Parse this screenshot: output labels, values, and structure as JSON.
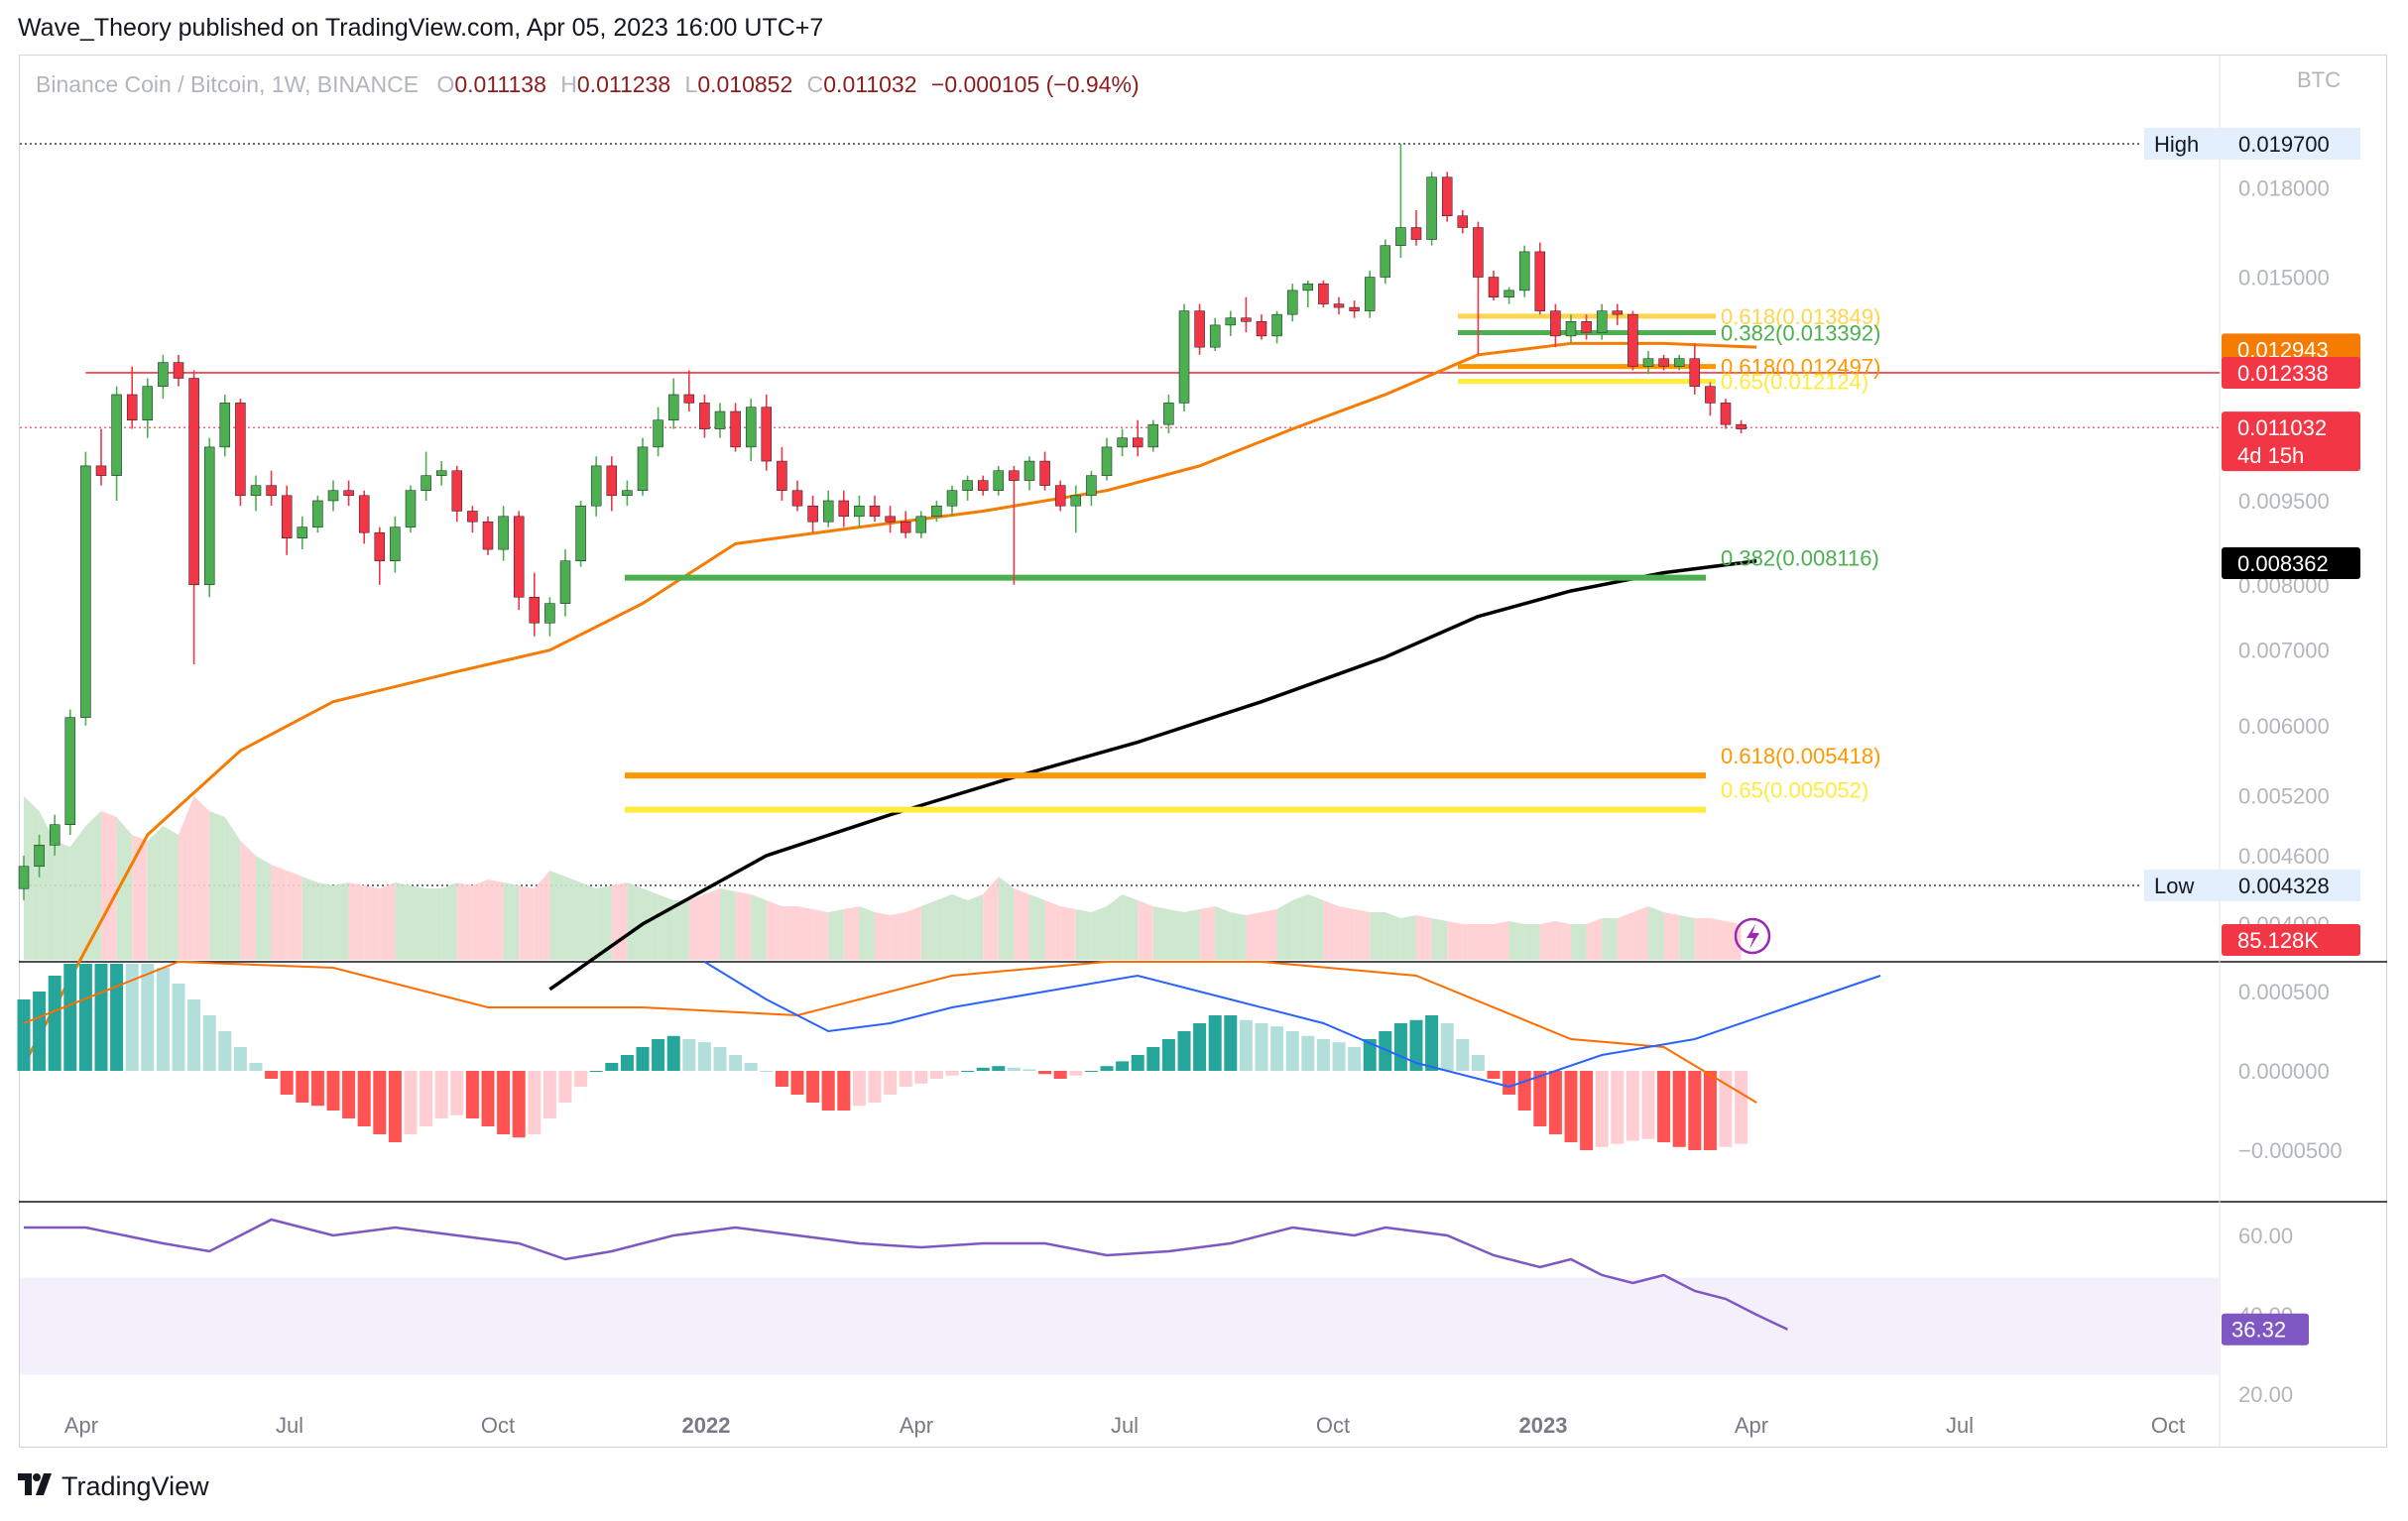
{
  "header": {
    "publisher_line": "Wave_Theory published on TradingView.com, Apr 05, 2023 16:00 UTC+7"
  },
  "symbol": {
    "name": "Binance Coin / Bitcoin, 1W, BINANCE",
    "o_label": "O",
    "o_value": "0.011138",
    "h_label": "H",
    "h_value": "0.011238",
    "l_label": "L",
    "l_value": "0.010852",
    "c_label": "C",
    "c_value": "0.011032",
    "change": "−0.000105 (−0.94%)"
  },
  "unit_label": "BTC",
  "footer": {
    "brand": "TradingView"
  },
  "colors": {
    "up": "#26a69a",
    "down": "#ef5350",
    "upBody": "#4caf50",
    "downBody": "#f23645",
    "ema50": "#f57c00",
    "ema200": "#000000",
    "fibGreen": "#4caf50",
    "fibOrange": "#ff9800",
    "fibYellow": "#ffeb3b",
    "macd": "#2962ff",
    "signal": "#ff6d00",
    "rsi": "#7e57c2",
    "resistance": "#f23645"
  },
  "chart_data": {
    "type": "candlestick",
    "title": "Binance Coin / Bitcoin, 1W, BINANCE",
    "price_axis": {
      "scale": "log",
      "ticks": [
        "0.018000",
        "0.015000",
        "0.012943",
        "0.012338",
        "0.011032",
        "0.009500",
        "0.008362",
        "0.008000",
        "0.007000",
        "0.006000",
        "0.005200",
        "0.004600",
        "0.004000"
      ],
      "visible_tick_labels": [
        "0.018000",
        "0.015000",
        "0.009500",
        "0.008000",
        "0.007000",
        "0.006000",
        "0.005200",
        "0.004600",
        "0.004000"
      ]
    },
    "x_axis": {
      "labels": [
        "Apr",
        "Jul",
        "Oct",
        "2022",
        "Apr",
        "Jul",
        "Oct",
        "2023",
        "Apr",
        "Jul",
        "Oct"
      ],
      "bold": [
        false,
        false,
        false,
        true,
        false,
        false,
        false,
        true,
        false,
        false,
        false
      ]
    },
    "high_marker": {
      "label": "High",
      "value": "0.019700"
    },
    "low_marker": {
      "label": "Low",
      "value": "0.004328"
    },
    "price_badges": [
      {
        "value": "0.012943",
        "color": "#f57c00",
        "text_color": "#ffffff"
      },
      {
        "value": "0.012338",
        "color": "#f23645",
        "text_color": "#ffffff"
      },
      {
        "value": "0.011032",
        "sub": "4d 15h",
        "color": "#f23645",
        "text_color": "#ffffff"
      },
      {
        "value": "0.008362",
        "color": "#000000",
        "text_color": "#ffffff"
      },
      {
        "value": "85.128K",
        "color": "#f23645",
        "text_color": "#ffffff"
      }
    ],
    "fib_levels": [
      {
        "label": "0.618(0.013849)",
        "value": 0.013849,
        "color": "#ffd54f",
        "range": "short"
      },
      {
        "label": "0.382(0.013392)",
        "value": 0.013392,
        "color": "#4caf50",
        "range": "short"
      },
      {
        "label": "0.618(0.012497)",
        "value": 0.012497,
        "color": "#ff9800",
        "range": "short"
      },
      {
        "label": "0.65(0.012124)",
        "value": 0.012124,
        "color": "#ffeb3b",
        "range": "short"
      },
      {
        "label": "0.382(0.008116)",
        "value": 0.008116,
        "color": "#4caf50",
        "range": "long"
      },
      {
        "label": "0.618(0.005418)",
        "value": 0.005418,
        "color": "#ff9800",
        "range": "long"
      },
      {
        "label": "0.65(0.005052)",
        "value": 0.005052,
        "color": "#ffeb3b",
        "range": "long"
      }
    ],
    "resistance_level": 0.012338,
    "candles": [
      [
        0.0043,
        0.0046,
        0.0042,
        0.0045
      ],
      [
        0.0045,
        0.0048,
        0.0044,
        0.0047
      ],
      [
        0.0047,
        0.005,
        0.0046,
        0.0049
      ],
      [
        0.0049,
        0.0062,
        0.0048,
        0.0061
      ],
      [
        0.0061,
        0.0105,
        0.006,
        0.0102
      ],
      [
        0.0102,
        0.011,
        0.0098,
        0.01
      ],
      [
        0.01,
        0.012,
        0.0095,
        0.0118
      ],
      [
        0.0118,
        0.0125,
        0.011,
        0.0112
      ],
      [
        0.0112,
        0.0122,
        0.0108,
        0.012
      ],
      [
        0.012,
        0.0128,
        0.0117,
        0.0126
      ],
      [
        0.0126,
        0.0128,
        0.012,
        0.0122
      ],
      [
        0.0122,
        0.0124,
        0.0068,
        0.008
      ],
      [
        0.008,
        0.0108,
        0.0078,
        0.0106
      ],
      [
        0.0106,
        0.0118,
        0.0104,
        0.0116
      ],
      [
        0.0116,
        0.0117,
        0.0094,
        0.0096
      ],
      [
        0.0096,
        0.01,
        0.0093,
        0.0098
      ],
      [
        0.0098,
        0.0101,
        0.0094,
        0.0096
      ],
      [
        0.0096,
        0.0098,
        0.0085,
        0.0088
      ],
      [
        0.0088,
        0.0092,
        0.0086,
        0.009
      ],
      [
        0.009,
        0.0096,
        0.0089,
        0.0095
      ],
      [
        0.0095,
        0.0099,
        0.0093,
        0.0097
      ],
      [
        0.0097,
        0.0099,
        0.0094,
        0.0096
      ],
      [
        0.0096,
        0.0097,
        0.0087,
        0.0089
      ],
      [
        0.0089,
        0.009,
        0.008,
        0.0084
      ],
      [
        0.0084,
        0.0092,
        0.0082,
        0.009
      ],
      [
        0.009,
        0.0098,
        0.0089,
        0.0097
      ],
      [
        0.0097,
        0.0105,
        0.0095,
        0.01
      ],
      [
        0.01,
        0.0103,
        0.0098,
        0.0101
      ],
      [
        0.0101,
        0.0102,
        0.0091,
        0.0093
      ],
      [
        0.0093,
        0.0094,
        0.0089,
        0.0091
      ],
      [
        0.0091,
        0.0092,
        0.0085,
        0.0086
      ],
      [
        0.0086,
        0.0094,
        0.0084,
        0.0092
      ],
      [
        0.0092,
        0.0093,
        0.0076,
        0.0078
      ],
      [
        0.0078,
        0.0082,
        0.0072,
        0.0074
      ],
      [
        0.0074,
        0.0078,
        0.0072,
        0.0077
      ],
      [
        0.0077,
        0.0086,
        0.0075,
        0.0084
      ],
      [
        0.0084,
        0.0095,
        0.0083,
        0.0094
      ],
      [
        0.0094,
        0.0104,
        0.0092,
        0.0102
      ],
      [
        0.0102,
        0.0104,
        0.0093,
        0.0096
      ],
      [
        0.0096,
        0.0099,
        0.0094,
        0.0097
      ],
      [
        0.0097,
        0.0108,
        0.0096,
        0.0106
      ],
      [
        0.0106,
        0.0115,
        0.0104,
        0.0112
      ],
      [
        0.0112,
        0.0122,
        0.011,
        0.0118
      ],
      [
        0.0118,
        0.0124,
        0.0114,
        0.0116
      ],
      [
        0.0116,
        0.0118,
        0.0108,
        0.011
      ],
      [
        0.011,
        0.0116,
        0.0108,
        0.0114
      ],
      [
        0.0114,
        0.0116,
        0.0105,
        0.0106
      ],
      [
        0.0106,
        0.0117,
        0.0103,
        0.0115
      ],
      [
        0.0115,
        0.0118,
        0.0101,
        0.0103
      ],
      [
        0.0103,
        0.0106,
        0.0095,
        0.0097
      ],
      [
        0.0097,
        0.0099,
        0.0093,
        0.0094
      ],
      [
        0.0094,
        0.0096,
        0.0089,
        0.0091
      ],
      [
        0.0091,
        0.0097,
        0.009,
        0.0095
      ],
      [
        0.0095,
        0.0097,
        0.009,
        0.0092
      ],
      [
        0.0092,
        0.0096,
        0.009,
        0.0094
      ],
      [
        0.0094,
        0.0096,
        0.0091,
        0.0092
      ],
      [
        0.0092,
        0.0094,
        0.0089,
        0.0091
      ],
      [
        0.0091,
        0.0093,
        0.0088,
        0.0089
      ],
      [
        0.0089,
        0.0093,
        0.0088,
        0.0092
      ],
      [
        0.0092,
        0.0095,
        0.0091,
        0.0094
      ],
      [
        0.0094,
        0.0098,
        0.0092,
        0.0097
      ],
      [
        0.0097,
        0.01,
        0.0095,
        0.0099
      ],
      [
        0.0099,
        0.01,
        0.0096,
        0.0097
      ],
      [
        0.0097,
        0.0102,
        0.0096,
        0.0101
      ],
      [
        0.0101,
        0.0102,
        0.008,
        0.0099
      ],
      [
        0.0099,
        0.0104,
        0.0097,
        0.0103
      ],
      [
        0.0103,
        0.0105,
        0.0097,
        0.0098
      ],
      [
        0.0098,
        0.0099,
        0.0093,
        0.0094
      ],
      [
        0.0094,
        0.0098,
        0.0089,
        0.0096
      ],
      [
        0.0096,
        0.0101,
        0.0094,
        0.01
      ],
      [
        0.01,
        0.0108,
        0.0099,
        0.0106
      ],
      [
        0.0106,
        0.011,
        0.0104,
        0.0108
      ],
      [
        0.0108,
        0.0112,
        0.0104,
        0.0106
      ],
      [
        0.0106,
        0.0112,
        0.0105,
        0.0111
      ],
      [
        0.0111,
        0.0118,
        0.0109,
        0.0116
      ],
      [
        0.0116,
        0.0142,
        0.0114,
        0.014
      ],
      [
        0.014,
        0.0142,
        0.0128,
        0.013
      ],
      [
        0.013,
        0.0138,
        0.0129,
        0.0136
      ],
      [
        0.0136,
        0.014,
        0.0133,
        0.0138
      ],
      [
        0.0138,
        0.0144,
        0.0134,
        0.0137
      ],
      [
        0.0137,
        0.0139,
        0.0132,
        0.0133
      ],
      [
        0.0133,
        0.014,
        0.0131,
        0.0139
      ],
      [
        0.0139,
        0.0148,
        0.0137,
        0.0146
      ],
      [
        0.0146,
        0.0149,
        0.0141,
        0.0148
      ],
      [
        0.0148,
        0.0149,
        0.0141,
        0.0142
      ],
      [
        0.0142,
        0.0144,
        0.0139,
        0.0141
      ],
      [
        0.0141,
        0.0143,
        0.0138,
        0.014
      ],
      [
        0.014,
        0.0152,
        0.0138,
        0.015
      ],
      [
        0.015,
        0.0162,
        0.0148,
        0.016
      ],
      [
        0.016,
        0.0197,
        0.0156,
        0.0166
      ],
      [
        0.0166,
        0.0172,
        0.016,
        0.0162
      ],
      [
        0.0162,
        0.0186,
        0.016,
        0.0184
      ],
      [
        0.0184,
        0.0186,
        0.0168,
        0.017
      ],
      [
        0.017,
        0.0172,
        0.0164,
        0.0166
      ],
      [
        0.0166,
        0.0168,
        0.0128,
        0.015
      ],
      [
        0.015,
        0.0152,
        0.0143,
        0.0144
      ],
      [
        0.0144,
        0.0147,
        0.0142,
        0.0146
      ],
      [
        0.0146,
        0.016,
        0.0144,
        0.0158
      ],
      [
        0.0158,
        0.0161,
        0.0139,
        0.014
      ],
      [
        0.014,
        0.0142,
        0.013,
        0.0133
      ],
      [
        0.0133,
        0.0139,
        0.0131,
        0.0137
      ],
      [
        0.0137,
        0.0139,
        0.0132,
        0.0134
      ],
      [
        0.0134,
        0.0142,
        0.0132,
        0.014
      ],
      [
        0.014,
        0.0142,
        0.0136,
        0.0139
      ],
      [
        0.0139,
        0.014,
        0.0124,
        0.0125
      ],
      [
        0.0125,
        0.0129,
        0.0123,
        0.0127
      ],
      [
        0.0127,
        0.0128,
        0.0124,
        0.0125
      ],
      [
        0.0125,
        0.0128,
        0.0124,
        0.0127
      ],
      [
        0.0127,
        0.0131,
        0.0118,
        0.012
      ],
      [
        0.012,
        0.0121,
        0.0113,
        0.0116
      ],
      [
        0.0116,
        0.0117,
        0.011,
        0.0111
      ],
      [
        0.0111,
        0.0112,
        0.0109,
        0.011
      ]
    ],
    "ema50_points": [
      [
        0,
        0.003
      ],
      [
        8,
        0.0048
      ],
      [
        14,
        0.0057
      ],
      [
        20,
        0.0063
      ],
      [
        28,
        0.0067
      ],
      [
        34,
        0.007
      ],
      [
        40,
        0.0077
      ],
      [
        46,
        0.0087
      ],
      [
        54,
        0.009
      ],
      [
        62,
        0.0093
      ],
      [
        70,
        0.0097
      ],
      [
        76,
        0.0102
      ],
      [
        82,
        0.011
      ],
      [
        88,
        0.0118
      ],
      [
        94,
        0.0128
      ],
      [
        100,
        0.0131
      ],
      [
        106,
        0.0131
      ],
      [
        112,
        0.013
      ]
    ],
    "ema200_points": [
      [
        34,
        0.0035
      ],
      [
        40,
        0.004
      ],
      [
        48,
        0.0046
      ],
      [
        56,
        0.005
      ],
      [
        64,
        0.0054
      ],
      [
        72,
        0.0058
      ],
      [
        80,
        0.0063
      ],
      [
        88,
        0.0069
      ],
      [
        94,
        0.0075
      ],
      [
        100,
        0.0079
      ],
      [
        106,
        0.0082
      ],
      [
        112,
        0.0084
      ]
    ],
    "volume_values": [
      55,
      50,
      40,
      38,
      45,
      50,
      48,
      42,
      40,
      45,
      42,
      55,
      50,
      48,
      40,
      35,
      32,
      30,
      28,
      26,
      25,
      26,
      25,
      24,
      26,
      25,
      24,
      24,
      26,
      25,
      27,
      26,
      25,
      24,
      30,
      28,
      26,
      24,
      25,
      26,
      24,
      22,
      20,
      20,
      22,
      24,
      23,
      22,
      20,
      18,
      18,
      17,
      16,
      17,
      18,
      16,
      15,
      16,
      18,
      20,
      22,
      20,
      22,
      28,
      24,
      22,
      20,
      18,
      17,
      16,
      18,
      22,
      20,
      18,
      17,
      16,
      17,
      18,
      16,
      15,
      16,
      17,
      20,
      22,
      20,
      18,
      17,
      16,
      16,
      14,
      15,
      14,
      13,
      12,
      12,
      12,
      13,
      12,
      12,
      13,
      12,
      12,
      14,
      14,
      16,
      18,
      16,
      15,
      14,
      14,
      13,
      12
    ],
    "macd_histogram": [
      0.00045,
      0.0005,
      0.0006,
      0.0007,
      0.0008,
      0.00085,
      0.0009,
      0.00085,
      0.00075,
      0.00065,
      0.00055,
      0.00045,
      0.00035,
      0.00025,
      0.00015,
      5e-05,
      -5e-05,
      -0.00015,
      -0.0002,
      -0.00022,
      -0.00025,
      -0.0003,
      -0.00035,
      -0.0004,
      -0.00045,
      -0.0004,
      -0.00035,
      -0.0003,
      -0.00028,
      -0.0003,
      -0.00035,
      -0.0004,
      -0.00042,
      -0.0004,
      -0.0003,
      -0.0002,
      -0.0001,
      0.0,
      5e-05,
      0.0001,
      0.00015,
      0.0002,
      0.00022,
      0.0002,
      0.00018,
      0.00015,
      0.0001,
      5e-05,
      0.0,
      -0.0001,
      -0.00015,
      -0.0002,
      -0.00025,
      -0.00025,
      -0.00022,
      -0.0002,
      -0.00015,
      -0.0001,
      -8e-05,
      -5e-05,
      -3e-05,
      0.0,
      2e-05,
      3e-05,
      2e-05,
      1e-05,
      -2e-05,
      -5e-05,
      -3e-05,
      0.0,
      3e-05,
      6e-05,
      0.0001,
      0.00015,
      0.0002,
      0.00025,
      0.0003,
      0.00035,
      0.00035,
      0.00032,
      0.0003,
      0.00028,
      0.00025,
      0.00022,
      0.0002,
      0.00018,
      0.00015,
      0.0002,
      0.00025,
      0.0003,
      0.00032,
      0.00035,
      0.0003,
      0.0002,
      0.0001,
      -5e-05,
      -0.00015,
      -0.00025,
      -0.00035,
      -0.0004,
      -0.00045,
      -0.0005,
      -0.00048,
      -0.00046,
      -0.00044,
      -0.00043,
      -0.00045,
      -0.00048,
      -0.0005,
      -0.0005,
      -0.00048,
      -0.00046
    ],
    "macd_line_points": [
      [
        44,
        0.00075
      ],
      [
        48,
        0.00045
      ],
      [
        52,
        0.00025
      ],
      [
        56,
        0.0003
      ],
      [
        60,
        0.0004
      ],
      [
        66,
        0.0005
      ],
      [
        72,
        0.0006
      ],
      [
        78,
        0.00045
      ],
      [
        84,
        0.0003
      ],
      [
        90,
        5e-05
      ],
      [
        96,
        -0.0001
      ],
      [
        102,
        0.0001
      ],
      [
        108,
        0.0002
      ],
      [
        114,
        0.0004
      ],
      [
        120,
        0.0006
      ]
    ],
    "signal_line_points": [
      [
        0,
        0.0003
      ],
      [
        10,
        0.0007
      ],
      [
        20,
        0.00065
      ],
      [
        30,
        0.0004
      ],
      [
        40,
        0.0004
      ],
      [
        50,
        0.00035
      ],
      [
        60,
        0.0006
      ],
      [
        70,
        0.00075
      ],
      [
        80,
        0.0008
      ],
      [
        90,
        0.0006
      ],
      [
        100,
        0.0002
      ],
      [
        106,
        0.00015
      ],
      [
        112,
        -0.0002
      ]
    ],
    "rsi_points": [
      [
        0,
        62
      ],
      [
        4,
        62
      ],
      [
        9,
        58
      ],
      [
        12,
        56
      ],
      [
        16,
        64
      ],
      [
        20,
        60
      ],
      [
        24,
        62
      ],
      [
        28,
        60
      ],
      [
        32,
        58
      ],
      [
        35,
        54
      ],
      [
        38,
        56
      ],
      [
        42,
        60
      ],
      [
        46,
        62
      ],
      [
        50,
        60
      ],
      [
        54,
        58
      ],
      [
        58,
        57
      ],
      [
        62,
        58
      ],
      [
        66,
        58
      ],
      [
        70,
        55
      ],
      [
        74,
        56
      ],
      [
        78,
        58
      ],
      [
        82,
        62
      ],
      [
        86,
        60
      ],
      [
        88,
        62
      ],
      [
        92,
        60
      ],
      [
        95,
        55
      ],
      [
        98,
        52
      ],
      [
        100,
        54
      ],
      [
        102,
        50
      ],
      [
        104,
        48
      ],
      [
        106,
        50
      ],
      [
        108,
        46
      ],
      [
        110,
        44
      ],
      [
        112,
        40
      ],
      [
        114,
        36.32
      ]
    ],
    "rsi_axis": {
      "ticks": [
        "60.00",
        "40.00",
        "20.00"
      ],
      "current": "36.32"
    },
    "macd_axis": {
      "ticks": [
        "0.000500",
        "0.000000",
        "−0.000500"
      ]
    }
  }
}
